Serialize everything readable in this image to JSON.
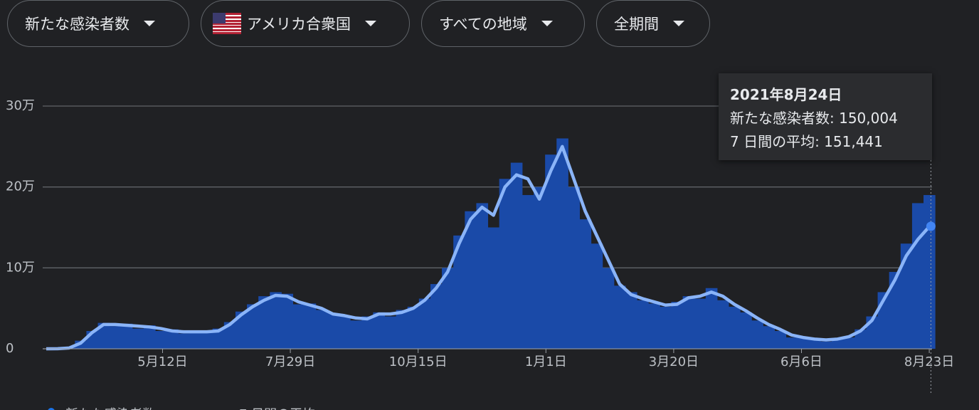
{
  "filters": [
    "新たな感染者数",
    "アメリカ合衆国",
    "すべての地域",
    "全期間"
  ],
  "tooltip": {
    "title": "2021年8月24日",
    "lines": [
      "新たな感染者数: 150,004",
      "7 日間の平均: 151,441"
    ]
  },
  "chart_data": {
    "type": "bar",
    "x": [
      0,
      7,
      14,
      21,
      28,
      35,
      42,
      49,
      56,
      63,
      70,
      77,
      84,
      91,
      98,
      105,
      112,
      119,
      126,
      133,
      140,
      147,
      154,
      161,
      168,
      175,
      182,
      189,
      196,
      203,
      210,
      217,
      224,
      231,
      238,
      245,
      252,
      259,
      266,
      273,
      280,
      287,
      294,
      301,
      308,
      315,
      322,
      329,
      336,
      343,
      350,
      357,
      364,
      371,
      378,
      385,
      392,
      399,
      406,
      413,
      420,
      427,
      434,
      441,
      448,
      455,
      462,
      469,
      476,
      483,
      490,
      497,
      504,
      511,
      518,
      525,
      532,
      539
    ],
    "xlim": [
      0,
      542
    ],
    "xticks": [
      {
        "value": 71,
        "label": "5月12日"
      },
      {
        "value": 149,
        "label": "7月29日"
      },
      {
        "value": 227,
        "label": "10月15日"
      },
      {
        "value": 305,
        "label": "1月1日"
      },
      {
        "value": 383,
        "label": "3月20日"
      },
      {
        "value": 461,
        "label": "6月6日"
      },
      {
        "value": 539,
        "label": "8月23日"
      }
    ],
    "ylim": [
      0,
      300000
    ],
    "yticks": [
      0,
      {
        "value": 100000,
        "label": "10万"
      },
      {
        "value": 200000,
        "label": "20万"
      },
      {
        "value": 300000,
        "label": "30万"
      }
    ],
    "grid": true,
    "series": [
      {
        "name": "新たな感染者数",
        "color": "#1a4aa8",
        "values": [
          0,
          200,
          2000,
          10000,
          22000,
          32000,
          28000,
          31000,
          25000,
          29000,
          22000,
          24000,
          19000,
          22000,
          20000,
          25000,
          33000,
          46000,
          55000,
          65000,
          70000,
          68000,
          55000,
          56000,
          48000,
          44000,
          40000,
          35000,
          40000,
          45000,
          40000,
          48000,
          52000,
          62000,
          80000,
          100000,
          140000,
          170000,
          180000,
          150000,
          210000,
          230000,
          190000,
          200000,
          240000,
          260000,
          200000,
          160000,
          130000,
          100000,
          78000,
          70000,
          60000,
          56000,
          52000,
          58000,
          65000,
          62000,
          75000,
          60000,
          52000,
          45000,
          35000,
          28000,
          22000,
          14000,
          15000,
          11000,
          9000,
          13000,
          14000,
          24000,
          40000,
          70000,
          95000,
          130000,
          180000,
          190000
        ]
      },
      {
        "name": "7 日間の平均",
        "color": "#8ab4f8",
        "type": "line",
        "values": [
          0,
          100,
          1000,
          7000,
          20000,
          30000,
          30000,
          29000,
          28000,
          27000,
          25000,
          22000,
          21000,
          21000,
          21000,
          22000,
          30000,
          42000,
          52000,
          60000,
          66000,
          65000,
          58000,
          54000,
          50000,
          43000,
          41000,
          38000,
          37000,
          43000,
          43000,
          45000,
          50000,
          60000,
          75000,
          95000,
          130000,
          160000,
          175000,
          165000,
          200000,
          215000,
          210000,
          185000,
          220000,
          250000,
          210000,
          170000,
          140000,
          110000,
          80000,
          67000,
          62000,
          58000,
          54000,
          55000,
          63000,
          65000,
          70000,
          65000,
          55000,
          47000,
          38000,
          30000,
          24000,
          17000,
          14000,
          12000,
          11000,
          12000,
          15000,
          22000,
          35000,
          60000,
          85000,
          115000,
          135000,
          151000
        ]
      }
    ],
    "highlight": {
      "x": 540,
      "y": 151441
    }
  }
}
